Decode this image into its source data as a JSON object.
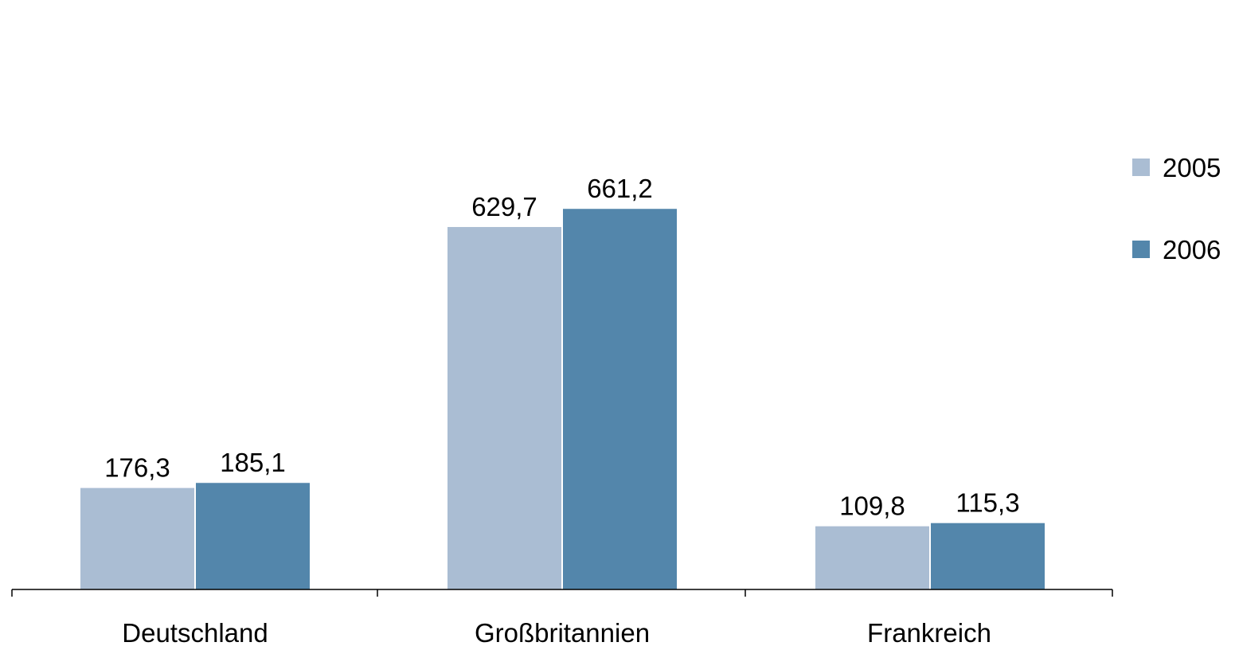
{
  "chart_data": {
    "type": "bar",
    "categories": [
      "Deutschland",
      "Großbritannien",
      "Frankreich"
    ],
    "series": [
      {
        "name": "2005",
        "values": [
          176.3,
          629.7,
          109.8
        ],
        "labels": [
          "176,3",
          "629,7",
          "109,8"
        ]
      },
      {
        "name": "2006",
        "values": [
          185.1,
          661.2,
          115.3
        ],
        "labels": [
          "185,1",
          "661,2",
          "115,3"
        ]
      }
    ],
    "colors": [
      "#aabdd3",
      "#5386ab"
    ],
    "axis_color": "#000000",
    "title": "",
    "xlabel": "",
    "ylabel": "",
    "ylim": [
      0,
      700
    ],
    "grid": false,
    "legend_position": "right"
  }
}
